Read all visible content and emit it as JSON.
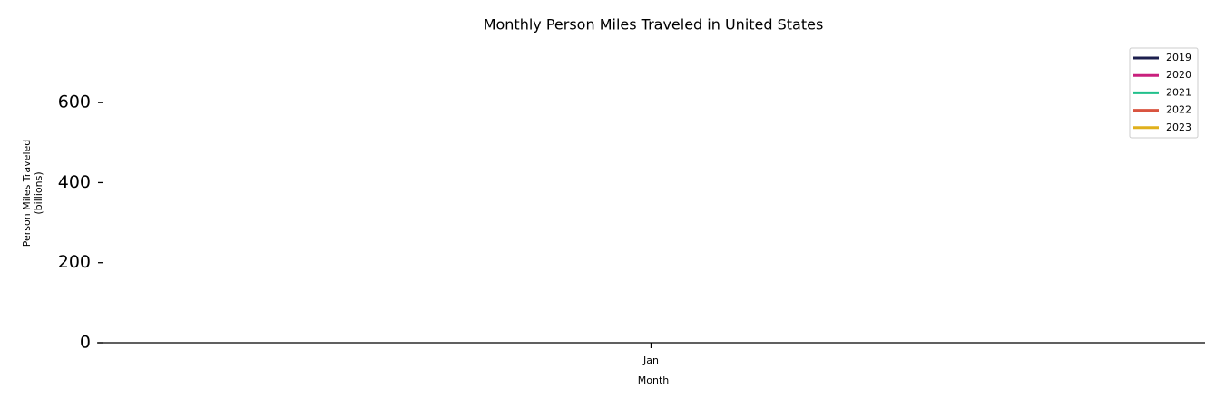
{
  "chart_data": {
    "type": "line",
    "title": "Monthly Person Miles Traveled in United States",
    "xlabel": "Month",
    "ylabel": [
      "Person Miles Traveled",
      "(billions)"
    ],
    "categories": [
      "Jan"
    ],
    "series": [
      {
        "name": "2019",
        "color": "#1c1f4e",
        "values": [
          null
        ]
      },
      {
        "name": "2020",
        "color": "#c9207d",
        "values": [
          null
        ]
      },
      {
        "name": "2021",
        "color": "#22c08c",
        "values": [
          null
        ]
      },
      {
        "name": "2022",
        "color": "#d95440",
        "values": [
          null
        ]
      },
      {
        "name": "2023",
        "color": "#e0b01c",
        "values": [
          null
        ]
      }
    ],
    "ylim": [
      0,
      700
    ],
    "yticks": [
      0,
      200,
      400,
      600
    ],
    "grid": false,
    "legend": "upper right"
  }
}
